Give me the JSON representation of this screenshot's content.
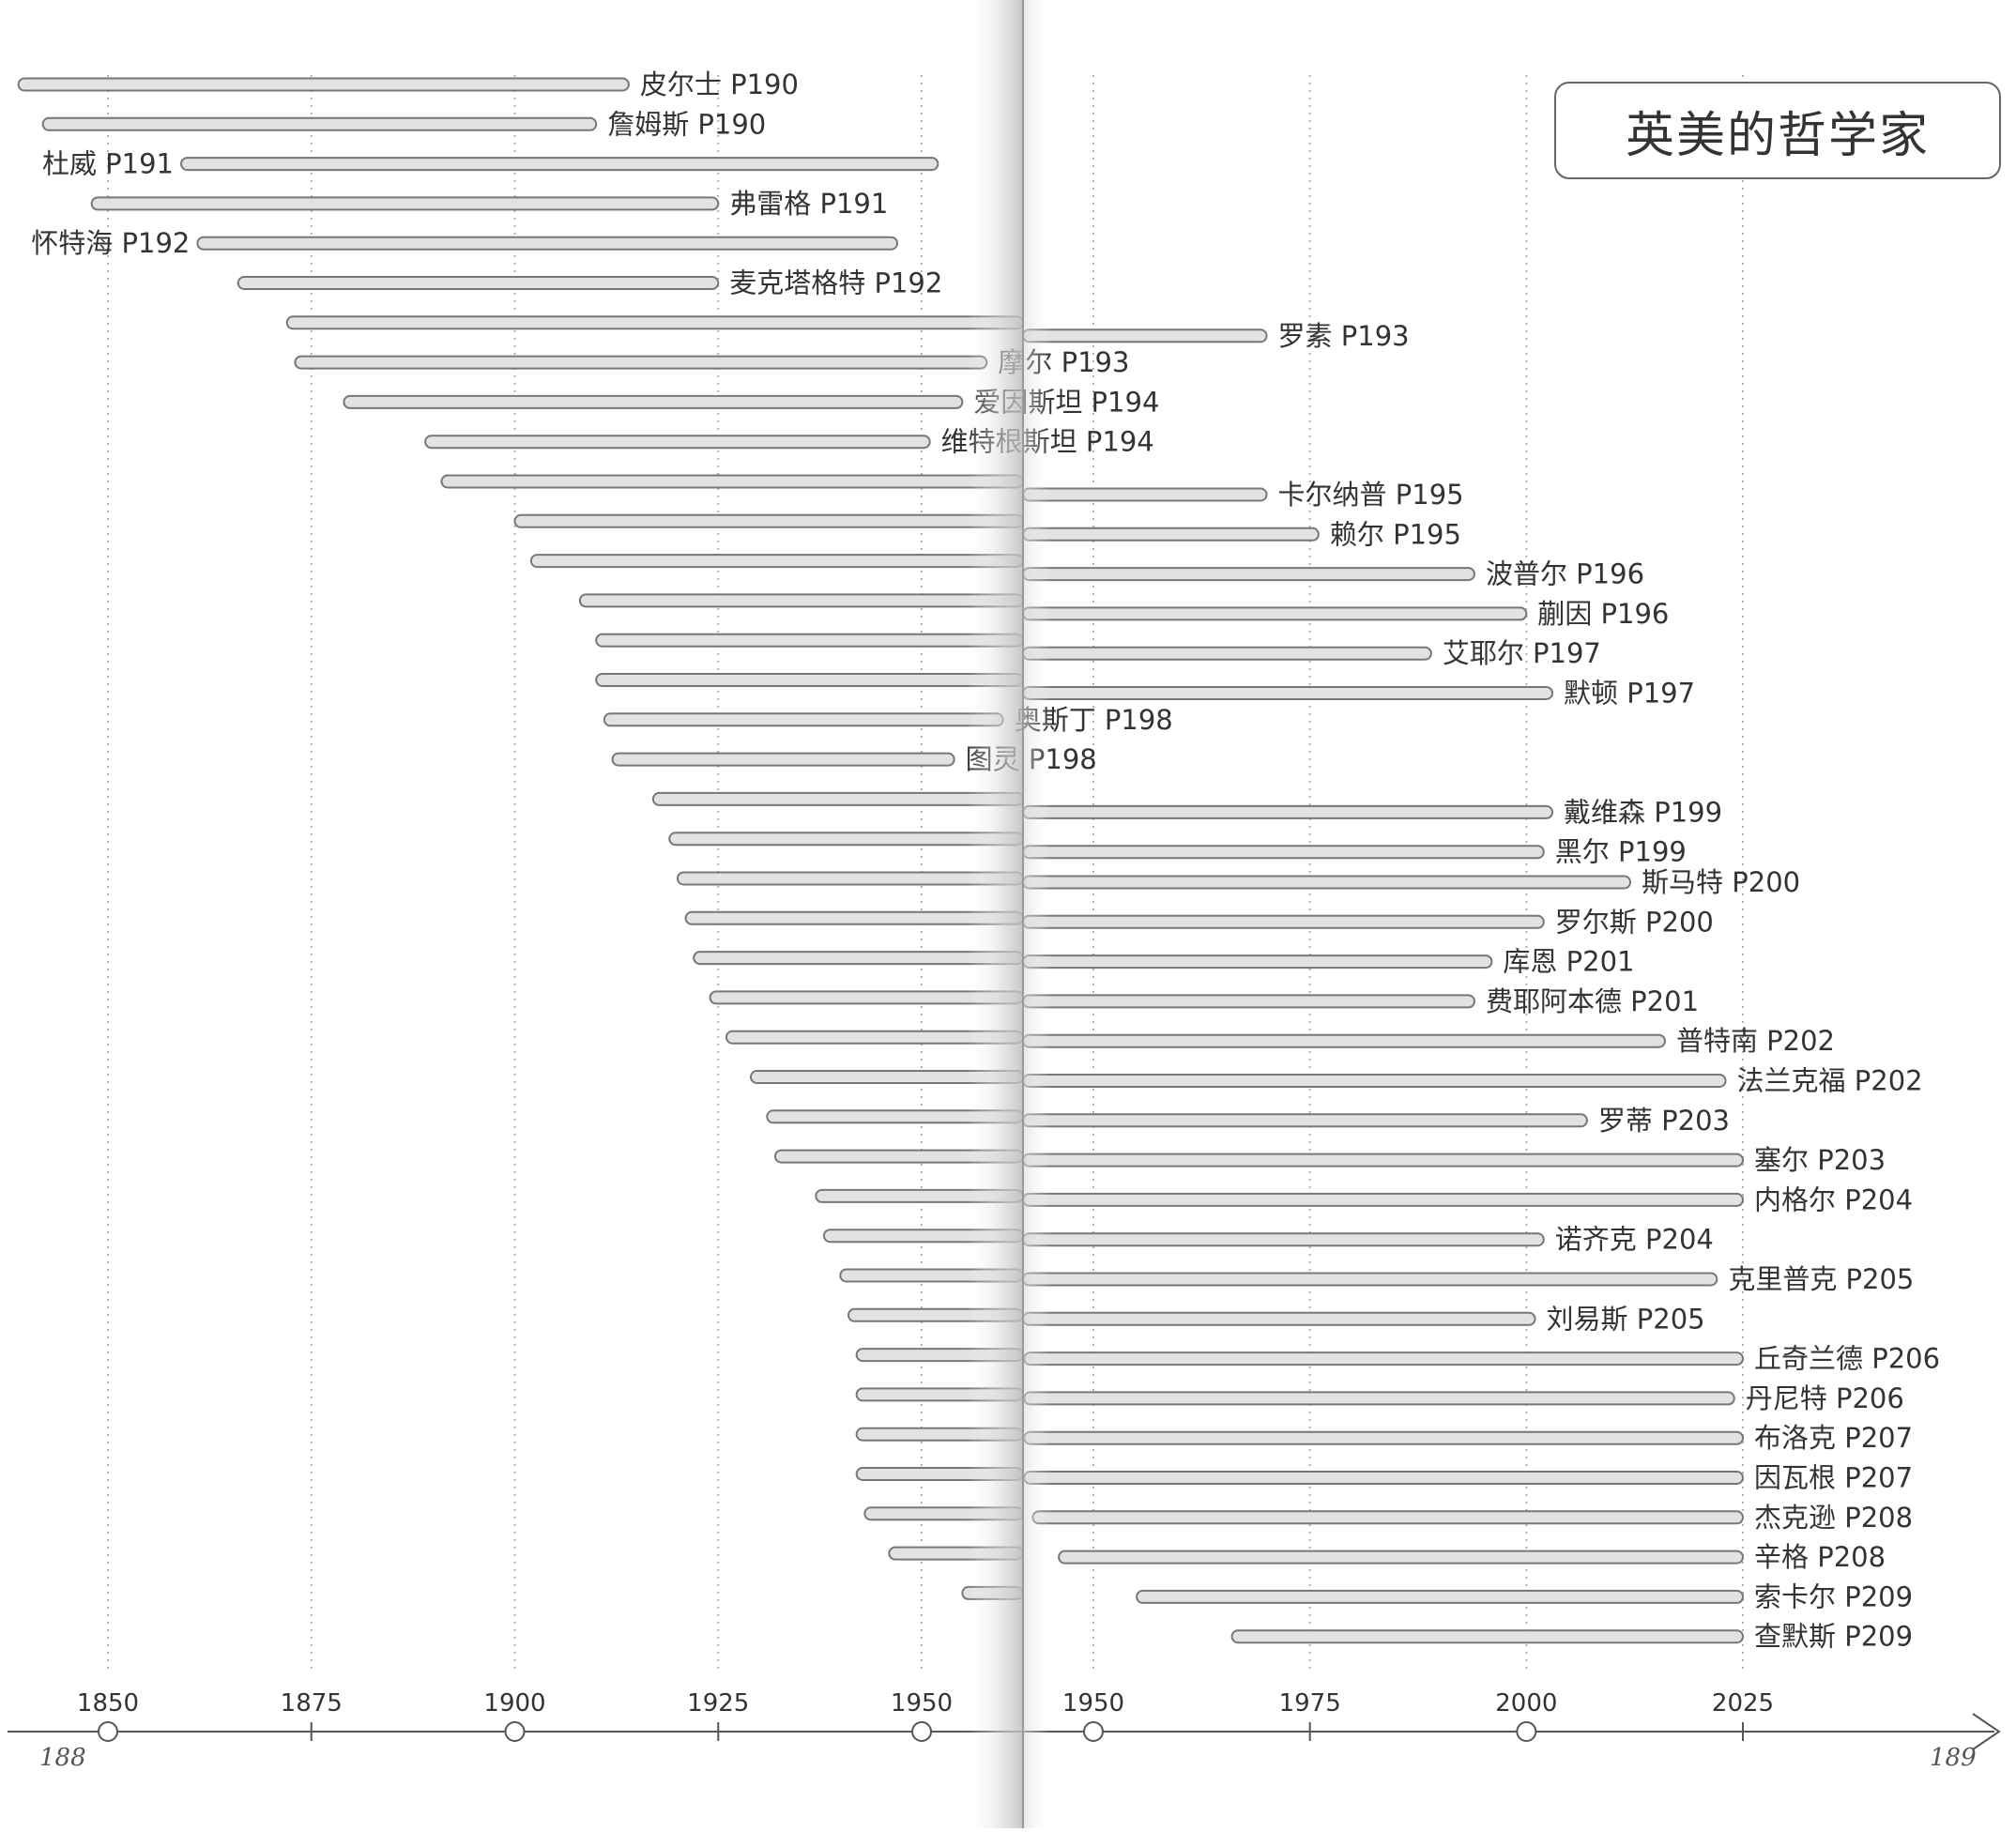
{
  "chart_data": {
    "type": "timeline",
    "title": "英美的哲学家",
    "left_page": {
      "page_number": "188",
      "axis_ticks": [
        "1850",
        "1875",
        "1900",
        "1925",
        "1950"
      ],
      "xlim": [
        1838,
        1963
      ]
    },
    "right_page": {
      "page_number": "189",
      "axis_ticks": [
        "1950",
        "1975",
        "2000",
        "2025"
      ],
      "xlim": [
        1963,
        2055
      ]
    },
    "grid": "dotted vertical lines at tick years",
    "series": [
      {
        "label": "皮尔士 P190",
        "start": 1839,
        "end": 1914
      },
      {
        "label": "詹姆斯 P190",
        "start": 1842,
        "end": 1910
      },
      {
        "label": "杜威 P191",
        "start": 1859,
        "end": 1952
      },
      {
        "label": "弗雷格 P191",
        "start": 1848,
        "end": 1925
      },
      {
        "label": "怀特海 P192",
        "start": 1861,
        "end": 1947
      },
      {
        "label": "麦克塔格特 P192",
        "start": 1866,
        "end": 1925
      },
      {
        "label": "罗素 P193",
        "start": 1872,
        "end": 1970
      },
      {
        "label": "摩尔 P193",
        "start": 1873,
        "end": 1958
      },
      {
        "label": "爱因斯坦 P194",
        "start": 1879,
        "end": 1955
      },
      {
        "label": "维特根斯坦 P194",
        "start": 1889,
        "end": 1951
      },
      {
        "label": "卡尔纳普 P195",
        "start": 1891,
        "end": 1970
      },
      {
        "label": "赖尔 P195",
        "start": 1900,
        "end": 1976
      },
      {
        "label": "波普尔 P196",
        "start": 1902,
        "end": 1994
      },
      {
        "label": "蒯因 P196",
        "start": 1908,
        "end": 2000
      },
      {
        "label": "艾耶尔 P197",
        "start": 1910,
        "end": 1989
      },
      {
        "label": "默顿 P197",
        "start": 1910,
        "end": 2003
      },
      {
        "label": "奥斯丁 P198",
        "start": 1911,
        "end": 1960
      },
      {
        "label": "图灵 P198",
        "start": 1912,
        "end": 1954
      },
      {
        "label": "戴维森 P199",
        "start": 1917,
        "end": 2003
      },
      {
        "label": "黑尔 P199",
        "start": 1919,
        "end": 2002
      },
      {
        "label": "斯马特 P200",
        "start": 1920,
        "end": 2012
      },
      {
        "label": "罗尔斯 P200",
        "start": 1921,
        "end": 2002
      },
      {
        "label": "库恩 P201",
        "start": 1922,
        "end": 1996
      },
      {
        "label": "费耶阿本德 P201",
        "start": 1924,
        "end": 1994
      },
      {
        "label": "普特南 P202",
        "start": 1926,
        "end": 2016
      },
      {
        "label": "法兰克福 P202",
        "start": 1929,
        "end": 2023
      },
      {
        "label": "罗蒂 P203",
        "start": 1931,
        "end": 2007
      },
      {
        "label": "塞尔 P203",
        "start": 1932,
        "end": 2025
      },
      {
        "label": "内格尔 P204",
        "start": 1937,
        "end": 2025
      },
      {
        "label": "诺齐克 P204",
        "start": 1938,
        "end": 2002
      },
      {
        "label": "克里普克 P205",
        "start": 1940,
        "end": 2022
      },
      {
        "label": "刘易斯 P205",
        "start": 1941,
        "end": 2001
      },
      {
        "label": "丘奇兰德 P206",
        "start": 1942,
        "end": 2025
      },
      {
        "label": "丹尼特 P206",
        "start": 1942,
        "end": 2024
      },
      {
        "label": "布洛克 P207",
        "start": 1942,
        "end": 2025
      },
      {
        "label": "因瓦根 P207",
        "start": 1942,
        "end": 2025
      },
      {
        "label": "杰克逊 P208",
        "start": 1943,
        "end": 2025
      },
      {
        "label": "辛格 P208",
        "start": 1946,
        "end": 2025
      },
      {
        "label": "索卡尔 P209",
        "start": 1955,
        "end": 2025
      },
      {
        "label": "查默斯 P209",
        "start": 1966,
        "end": 2025
      }
    ]
  }
}
